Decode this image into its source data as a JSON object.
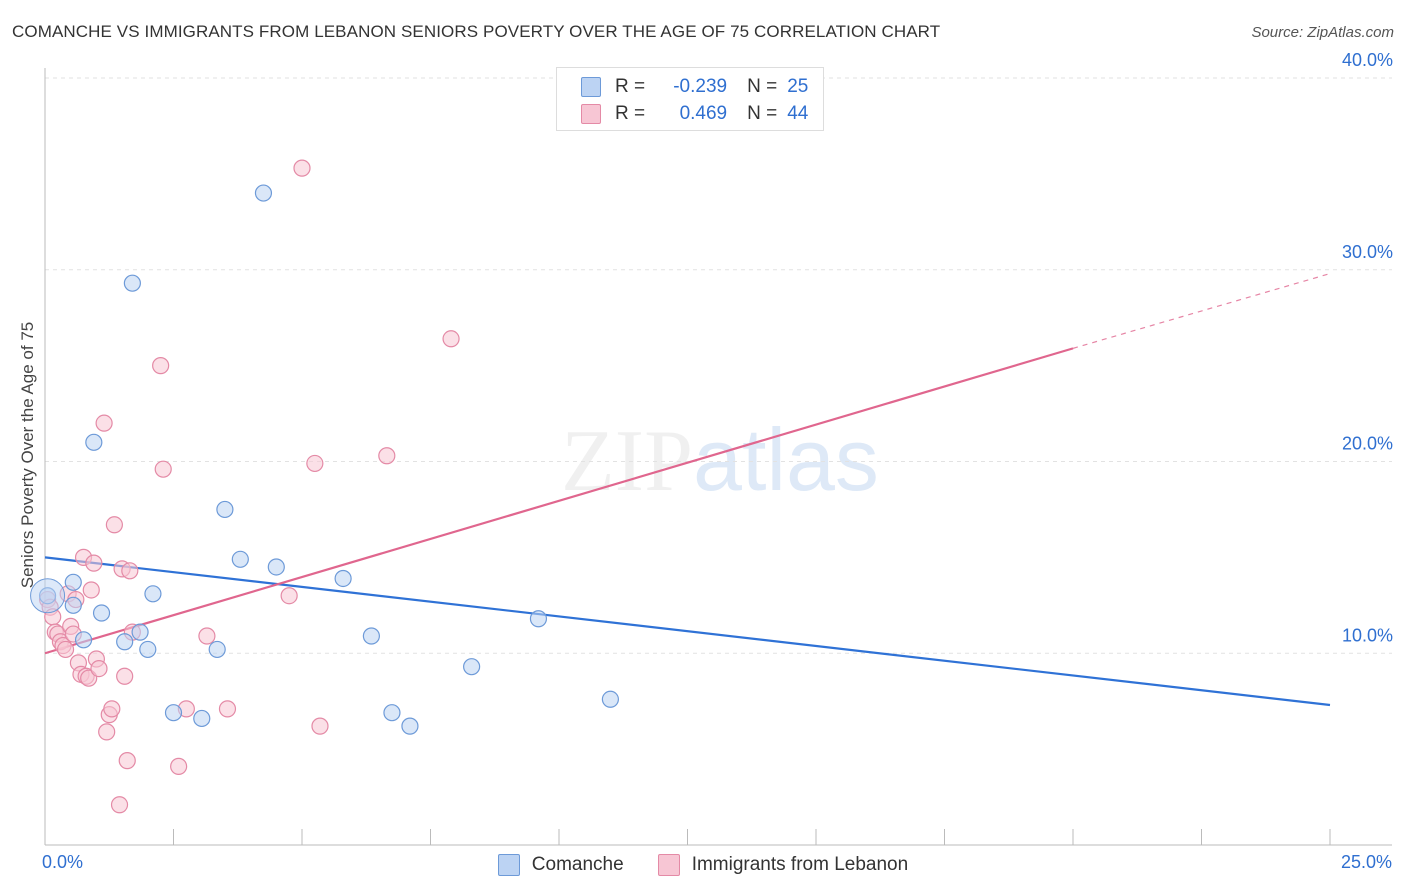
{
  "chart_data": {
    "type": "scatter",
    "title": "COMANCHE VS IMMIGRANTS FROM LEBANON SENIORS POVERTY OVER THE AGE OF 75 CORRELATION CHART",
    "source": "Source: ZipAtlas.com",
    "ylabel": "Seniors Poverty Over the Age of 75",
    "xlim": [
      0,
      25
    ],
    "ylim": [
      0,
      40
    ],
    "x_tick_labels": [
      "0.0%",
      "25.0%"
    ],
    "y_tick_values": [
      10,
      20,
      30,
      40
    ],
    "y_tick_labels": [
      "10.0%",
      "20.0%",
      "30.0%",
      "40.0%"
    ],
    "watermark": "ZIPatlas",
    "legend": [
      {
        "r_label": "R =",
        "r_value": "-0.239",
        "n_label": "N =",
        "n_value": "25"
      },
      {
        "r_label": "R =",
        "r_value": "0.469",
        "n_label": "N =",
        "n_value": "44"
      }
    ],
    "series": [
      {
        "name": "Comanche",
        "color": "#6d9ad8",
        "fill": "#bcd3f3",
        "points": [
          [
            0.05,
            13.0
          ],
          [
            0.55,
            13.7
          ],
          [
            0.55,
            12.5
          ],
          [
            0.75,
            10.7
          ],
          [
            0.95,
            21.0
          ],
          [
            1.1,
            12.1
          ],
          [
            1.55,
            10.6
          ],
          [
            1.7,
            29.3
          ],
          [
            1.85,
            11.1
          ],
          [
            2.0,
            10.2
          ],
          [
            2.1,
            13.1
          ],
          [
            2.5,
            6.9
          ],
          [
            3.05,
            6.6
          ],
          [
            3.35,
            10.2
          ],
          [
            3.5,
            17.5
          ],
          [
            3.8,
            14.9
          ],
          [
            4.25,
            34.0
          ],
          [
            4.5,
            14.5
          ],
          [
            5.8,
            13.9
          ],
          [
            6.35,
            10.9
          ],
          [
            6.75,
            6.9
          ],
          [
            7.1,
            6.2
          ],
          [
            8.3,
            9.3
          ],
          [
            9.6,
            11.8
          ],
          [
            11.0,
            7.6
          ]
        ]
      },
      {
        "name": "Immigrants from Lebanon",
        "color": "#e48aa6",
        "fill": "#f7c6d4",
        "points": [
          [
            0.05,
            12.8
          ],
          [
            0.1,
            12.4
          ],
          [
            0.15,
            11.9
          ],
          [
            0.2,
            11.1
          ],
          [
            0.25,
            11.0
          ],
          [
            0.3,
            10.6
          ],
          [
            0.35,
            10.4
          ],
          [
            0.4,
            10.2
          ],
          [
            0.45,
            13.1
          ],
          [
            0.5,
            11.4
          ],
          [
            0.55,
            11.0
          ],
          [
            0.6,
            12.8
          ],
          [
            0.65,
            9.5
          ],
          [
            0.7,
            8.9
          ],
          [
            0.75,
            15.0
          ],
          [
            0.8,
            8.8
          ],
          [
            0.85,
            8.7
          ],
          [
            0.9,
            13.3
          ],
          [
            0.95,
            14.7
          ],
          [
            1.0,
            9.7
          ],
          [
            1.05,
            9.2
          ],
          [
            1.15,
            22.0
          ],
          [
            1.2,
            5.9
          ],
          [
            1.25,
            6.8
          ],
          [
            1.3,
            7.1
          ],
          [
            1.35,
            16.7
          ],
          [
            1.45,
            2.1
          ],
          [
            1.5,
            14.4
          ],
          [
            1.55,
            8.8
          ],
          [
            1.6,
            4.4
          ],
          [
            1.65,
            14.3
          ],
          [
            1.7,
            11.1
          ],
          [
            2.25,
            25.0
          ],
          [
            2.3,
            19.6
          ],
          [
            2.6,
            4.1
          ],
          [
            2.75,
            7.1
          ],
          [
            3.15,
            10.9
          ],
          [
            3.55,
            7.1
          ],
          [
            4.75,
            13.0
          ],
          [
            5.0,
            35.3
          ],
          [
            5.25,
            19.9
          ],
          [
            5.35,
            6.2
          ],
          [
            6.65,
            20.3
          ],
          [
            7.9,
            26.4
          ]
        ]
      }
    ],
    "trend_lines": [
      {
        "series": "Comanche",
        "x0": 0,
        "y0": 15.0,
        "x1": 25,
        "y1": 7.3
      },
      {
        "series": "Immigrants from Lebanon",
        "x0": 0,
        "y0": 10.0,
        "x1": 20,
        "y1": 25.9,
        "dashed_to_x": 25,
        "dashed_to_y": 29.8
      }
    ]
  }
}
